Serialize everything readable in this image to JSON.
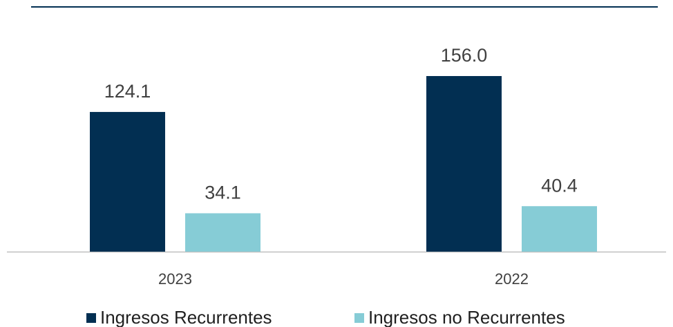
{
  "chart_data": {
    "type": "bar",
    "categories": [
      "2023",
      "2022"
    ],
    "series": [
      {
        "name": "Ingresos Recurrentes",
        "color": "#022f52",
        "values": [
          124.1,
          156.0
        ],
        "value_labels": [
          "124.1",
          "156.0"
        ]
      },
      {
        "name": "Ingresos no Recurrentes",
        "color": "#86ccd6",
        "values": [
          34.1,
          40.4
        ],
        "value_labels": [
          "34.1",
          "40.4"
        ]
      }
    ],
    "legend": "bottom"
  }
}
